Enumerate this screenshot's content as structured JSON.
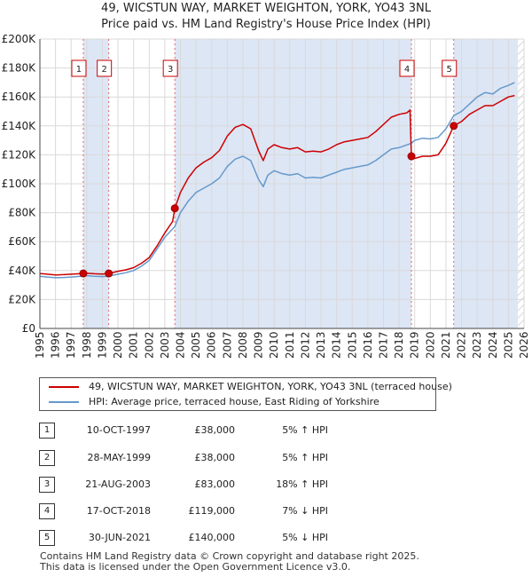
{
  "title_line1": "49, WICSTUN WAY, MARKET WEIGHTON, YORK, YO43 3NL",
  "title_line2": "Price paid vs. HM Land Registry's House Price Index (HPI)",
  "legend": {
    "property": "49, WICSTUN WAY, MARKET WEIGHTON, YORK, YO43 3NL (terraced house)",
    "hpi": "HPI: Average price, terraced house, East Riding of Yorkshire"
  },
  "colors": {
    "property": "#cc0000",
    "hpi": "#6699cc",
    "band": "#dde6f5",
    "grid": "#d9d9d9",
    "marker_line": "#e06666"
  },
  "transactions": [
    {
      "num": "1",
      "date": "10-OCT-1997",
      "price": "£38,000",
      "hpi": "5% ↑ HPI"
    },
    {
      "num": "2",
      "date": "28-MAY-1999",
      "price": "£38,000",
      "hpi": "5% ↑ HPI"
    },
    {
      "num": "3",
      "date": "21-AUG-2003",
      "price": "£83,000",
      "hpi": "18% ↑ HPI"
    },
    {
      "num": "4",
      "date": "17-OCT-2018",
      "price": "£119,000",
      "hpi": "7% ↓ HPI"
    },
    {
      "num": "5",
      "date": "30-JUN-2021",
      "price": "£140,000",
      "hpi": "5% ↓ HPI"
    }
  ],
  "footer": {
    "line1": "Contains HM Land Registry data © Crown copyright and database right 2025.",
    "line2": "This data is licensed under the Open Government Licence v3.0."
  },
  "chart_data": {
    "type": "line",
    "x_range": [
      1995,
      2026
    ],
    "ylim": [
      0,
      200000
    ],
    "y_ticks": [
      0,
      20000,
      40000,
      60000,
      80000,
      100000,
      120000,
      140000,
      160000,
      180000,
      200000
    ],
    "y_tick_labels": [
      "£0",
      "£20K",
      "£40K",
      "£60K",
      "£80K",
      "£100K",
      "£120K",
      "£140K",
      "£160K",
      "£180K",
      "£200K"
    ],
    "x_ticks": [
      1995,
      1996,
      1997,
      1998,
      1999,
      2000,
      2001,
      2002,
      2003,
      2004,
      2005,
      2006,
      2007,
      2008,
      2009,
      2010,
      2011,
      2012,
      2013,
      2014,
      2015,
      2016,
      2017,
      2018,
      2019,
      2020,
      2021,
      2022,
      2023,
      2024,
      2025,
      2026
    ],
    "x_tick_labels": [
      "1995",
      "1996",
      "1997",
      "1998",
      "1999",
      "2000",
      "2001",
      "2002",
      "2003",
      "2004",
      "2005",
      "2006",
      "2007",
      "2008",
      "2009",
      "2010",
      "2011",
      "2012",
      "2013",
      "2014",
      "2015",
      "2016",
      "2017",
      "2018",
      "2019",
      "2020",
      "2021",
      "2022",
      "2023",
      "2024",
      "2025",
      "2026"
    ],
    "grid": true,
    "sales": [
      {
        "label": "1",
        "x": 1997.78,
        "y": 38000
      },
      {
        "label": "2",
        "x": 1999.41,
        "y": 38000
      },
      {
        "label": "3",
        "x": 2003.64,
        "y": 83000
      },
      {
        "label": "4",
        "x": 2018.79,
        "y": 119000
      },
      {
        "label": "5",
        "x": 2021.5,
        "y": 140000
      }
    ],
    "shaded_ranges": [
      [
        1997.78,
        1999.41
      ],
      [
        2003.64,
        2018.79
      ],
      [
        2021.5,
        2025.6
      ]
    ],
    "hatch_from": 2025.6,
    "series": [
      {
        "name": "HPI: Average price, terraced house, East Riding of Yorkshire",
        "x": [
          1995,
          1995.5,
          1996,
          1996.5,
          1997,
          1997.78,
          1998,
          1998.5,
          1999,
          1999.41,
          2000,
          2000.5,
          2001,
          2001.5,
          2002,
          2002.5,
          2003,
          2003.64,
          2004,
          2004.5,
          2005,
          2005.5,
          2006,
          2006.5,
          2007,
          2007.5,
          2008,
          2008.5,
          2009,
          2009.3,
          2009.6,
          2010,
          2010.5,
          2011,
          2011.5,
          2012,
          2012.5,
          2013,
          2013.5,
          2014,
          2014.5,
          2015,
          2015.5,
          2016,
          2016.5,
          2017,
          2017.5,
          2018,
          2018.79,
          2019,
          2019.5,
          2020,
          2020.5,
          2021,
          2021.5,
          2022,
          2022.5,
          2023,
          2023.5,
          2024,
          2024.5,
          2025,
          2025.4
        ],
        "values": [
          36000,
          35500,
          35000,
          35200,
          35500,
          36200,
          36500,
          36000,
          35800,
          36200,
          37500,
          38500,
          40000,
          43000,
          47000,
          55000,
          63000,
          70400,
          80000,
          88000,
          94000,
          97000,
          100000,
          104000,
          112000,
          117000,
          119000,
          116000,
          103000,
          98000,
          106000,
          109000,
          107000,
          106000,
          107000,
          104000,
          104500,
          104000,
          106000,
          108000,
          110000,
          111000,
          112000,
          113000,
          116000,
          120000,
          124000,
          125000,
          128000,
          130000,
          131500,
          131000,
          132000,
          138000,
          147000,
          150000,
          155000,
          160000,
          163000,
          162000,
          166000,
          168000,
          170000
        ]
      },
      {
        "name": "49, WICSTUN WAY, MARKET WEIGHTON, YORK, YO43 3NL (terraced house)",
        "x": [
          1995,
          1995.5,
          1996,
          1996.5,
          1997,
          1997.5,
          1997.78,
          1998,
          1998.5,
          1999,
          1999.41,
          2000,
          2000.5,
          2001,
          2001.5,
          2002,
          2002.5,
          2003,
          2003.5,
          2003.64,
          2004,
          2004.5,
          2005,
          2005.5,
          2006,
          2006.5,
          2007,
          2007.5,
          2008,
          2008.5,
          2009,
          2009.3,
          2009.6,
          2010,
          2010.5,
          2011,
          2011.5,
          2012,
          2012.5,
          2013,
          2013.5,
          2014,
          2014.5,
          2015,
          2015.5,
          2016,
          2016.5,
          2017,
          2017.5,
          2018,
          2018.5,
          2018.7,
          2018.79,
          2019,
          2019.5,
          2020,
          2020.5,
          2021,
          2021.5,
          2022,
          2022.5,
          2023,
          2023.5,
          2024,
          2024.5,
          2025,
          2025.4
        ],
        "values": [
          38000,
          37500,
          37000,
          37200,
          37500,
          37800,
          38000,
          38200,
          37800,
          37600,
          38000,
          39500,
          40500,
          42000,
          45000,
          49000,
          57000,
          66000,
          74000,
          83000,
          94000,
          104000,
          111000,
          115000,
          118000,
          123000,
          133000,
          139000,
          141000,
          138000,
          123000,
          116000,
          124000,
          127000,
          125000,
          124000,
          125000,
          122000,
          122500,
          122000,
          124000,
          127000,
          129000,
          130000,
          131000,
          132000,
          136000,
          141000,
          146000,
          148000,
          149000,
          151000,
          119000,
          117500,
          119000,
          119000,
          120000,
          128000,
          140000,
          143000,
          148000,
          151000,
          154000,
          154000,
          157000,
          160000,
          161000
        ]
      }
    ]
  }
}
